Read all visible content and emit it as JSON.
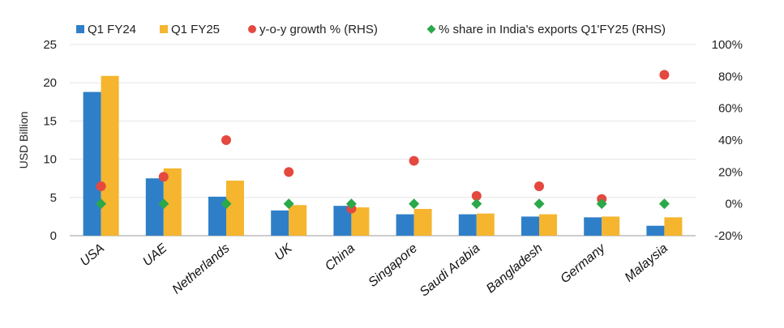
{
  "chart_data": {
    "type": "bar",
    "ylabel": "USD Billion",
    "ylim": [
      0,
      25
    ],
    "yticks": [
      0,
      5,
      10,
      15,
      20,
      25
    ],
    "y2lim": [
      -20,
      100
    ],
    "y2ticks": [
      "-20%",
      "0%",
      "20%",
      "40%",
      "60%",
      "80%",
      "100%"
    ],
    "y2values": [
      -20,
      0,
      20,
      40,
      60,
      80,
      100
    ],
    "grid": true,
    "legend_position": "top",
    "categories": [
      "USA",
      "UAE",
      "Netherlands",
      "UK",
      "China",
      "Singapore",
      "Saudi Arabia",
      "Bangladesh",
      "Germany",
      "Malaysia"
    ],
    "series": [
      {
        "name": "Q1 FY24",
        "kind": "bar",
        "axis": "left",
        "color": "#2f7fc8",
        "values": [
          18.8,
          7.5,
          5.1,
          3.3,
          3.9,
          2.8,
          2.8,
          2.5,
          2.4,
          1.3
        ]
      },
      {
        "name": "Q1 FY25",
        "kind": "bar",
        "axis": "left",
        "color": "#f5b52e",
        "values": [
          20.9,
          8.8,
          7.2,
          4.0,
          3.7,
          3.5,
          2.9,
          2.8,
          2.5,
          2.4
        ]
      },
      {
        "name": "y-o-y growth % (RHS)",
        "kind": "marker-circle",
        "axis": "right",
        "color": "#e5483f",
        "values": [
          11,
          17,
          40,
          20,
          -3,
          27,
          5,
          11,
          3,
          81
        ]
      },
      {
        "name": "% share in India's exports Q1'FY25 (RHS)",
        "kind": "marker-diamond",
        "axis": "right",
        "color": "#2aa84a",
        "values": [
          0,
          0,
          0,
          0,
          0,
          0,
          0,
          0,
          0,
          0
        ]
      }
    ]
  }
}
